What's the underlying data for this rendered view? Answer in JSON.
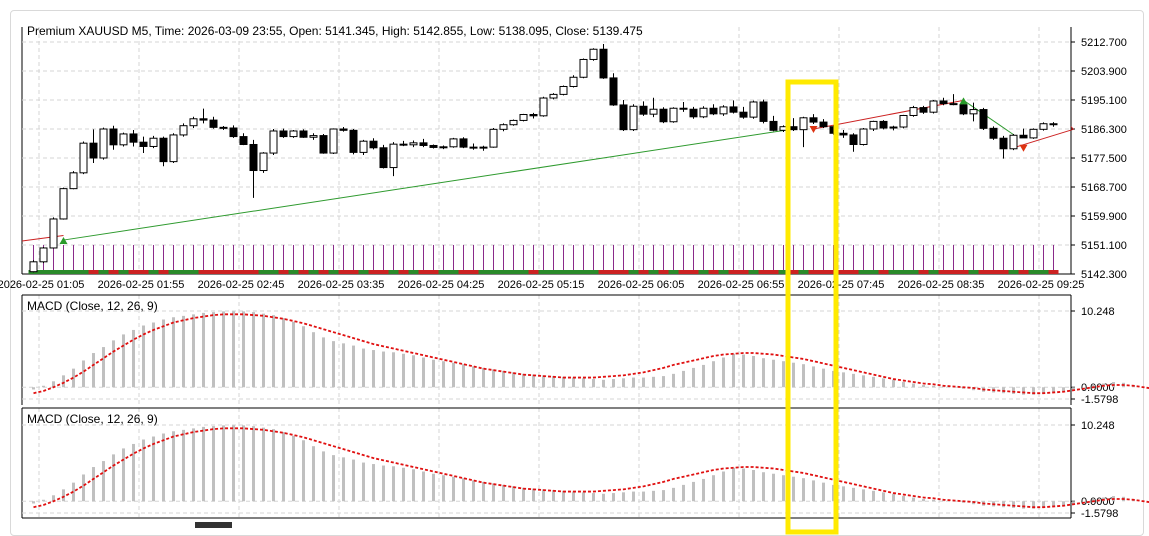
{
  "header": "Premium XAUUSD M5, Time: 2026-03-09 23:55, Open: 5141.345, High: 5142.855, Low: 5138.095, Close: 5139.475",
  "colors": {
    "bull": "#ffffff",
    "bear": "#000000",
    "grid": "#d6d6d6",
    "green_line": "#2e9a2e",
    "red_line": "#cc2222",
    "macd_hist": "#c0c0c0",
    "macd_signal": "#e01010",
    "volume": "#8a2a8a",
    "highlight": "#ffea00"
  },
  "chart_data": [
    {
      "type": "candlestick",
      "symbol": "Premium XAUUSD",
      "timeframe": "M5",
      "y_ticks": [
        "5212.700",
        "5203.900",
        "5195.100",
        "5186.300",
        "5177.500",
        "5168.700",
        "5159.900",
        "5151.100",
        "5142.300"
      ],
      "ylim": [
        5142.3,
        5212.7
      ],
      "x_ticks": [
        "2026-02-25 01:05",
        "2026-02-25 01:55",
        "2026-02-25 02:45",
        "2026-02-25 03:35",
        "2026-02-25 04:25",
        "2026-02-25 05:15",
        "2026-02-25 06:05",
        "2026-02-25 06:55",
        "2026-02-25 07:45",
        "2026-02-25 08:35",
        "2026-02-25 09:25"
      ],
      "candles": [
        [
          5143.0,
          5146.5,
          5142.8,
          5146.0
        ],
        [
          5146.0,
          5150.5,
          5145.6,
          5150.2
        ],
        [
          5150.2,
          5159.5,
          5150.0,
          5159.0
        ],
        [
          5159.0,
          5168.5,
          5158.8,
          5168.2
        ],
        [
          5168.2,
          5173.5,
          5168.0,
          5173.0
        ],
        [
          5173.0,
          5182.5,
          5172.6,
          5182.0
        ],
        [
          5182.0,
          5186.2,
          5176.0,
          5177.5
        ],
        [
          5177.5,
          5186.7,
          5177.0,
          5186.3
        ],
        [
          5186.3,
          5187.3,
          5180.0,
          5181.5
        ],
        [
          5181.5,
          5185.2,
          5181.0,
          5184.8
        ],
        [
          5184.8,
          5186.0,
          5181.0,
          5182.3
        ],
        [
          5182.3,
          5184.0,
          5179.0,
          5181.0
        ],
        [
          5181.0,
          5184.2,
          5180.5,
          5183.5
        ],
        [
          5183.5,
          5184.0,
          5175.0,
          5176.4
        ],
        [
          5176.4,
          5185.0,
          5176.0,
          5184.5
        ],
        [
          5184.5,
          5188.0,
          5184.0,
          5187.3
        ],
        [
          5187.3,
          5190.0,
          5186.6,
          5189.4
        ],
        [
          5189.4,
          5192.5,
          5188.0,
          5189.0
        ],
        [
          5189.0,
          5190.0,
          5186.4,
          5186.8
        ],
        [
          5186.8,
          5187.2,
          5186.0,
          5186.6
        ],
        [
          5186.6,
          5187.4,
          5183.6,
          5184.0
        ],
        [
          5184.0,
          5185.0,
          5181.4,
          5181.6
        ],
        [
          5181.6,
          5183.0,
          5165.4,
          5173.7
        ],
        [
          5173.7,
          5179.3,
          5173.0,
          5179.0
        ],
        [
          5179.0,
          5186.3,
          5178.4,
          5185.7
        ],
        [
          5185.7,
          5186.4,
          5183.6,
          5184.0
        ],
        [
          5184.0,
          5186.0,
          5183.6,
          5185.7
        ],
        [
          5185.7,
          5186.2,
          5183.6,
          5183.8
        ],
        [
          5183.8,
          5185.0,
          5183.0,
          5184.3
        ],
        [
          5184.3,
          5184.8,
          5178.8,
          5179.0
        ],
        [
          5179.0,
          5186.5,
          5178.7,
          5186.3
        ],
        [
          5186.3,
          5186.9,
          5185.5,
          5185.9
        ],
        [
          5185.9,
          5186.3,
          5178.6,
          5179.2
        ],
        [
          5179.2,
          5183.0,
          5178.4,
          5182.6
        ],
        [
          5182.6,
          5183.5,
          5180.1,
          5180.6
        ],
        [
          5180.6,
          5181.5,
          5174.3,
          5174.6
        ],
        [
          5174.6,
          5182.3,
          5172.0,
          5181.7
        ],
        [
          5181.7,
          5182.7,
          5181.1,
          5181.5
        ],
        [
          5181.5,
          5182.8,
          5180.8,
          5182.1
        ],
        [
          5182.1,
          5183.3,
          5180.8,
          5181.3
        ],
        [
          5181.3,
          5181.6,
          5180.4,
          5180.7
        ],
        [
          5180.7,
          5181.3,
          5180.2,
          5180.9
        ],
        [
          5180.9,
          5183.6,
          5180.6,
          5183.3
        ],
        [
          5183.3,
          5183.8,
          5180.5,
          5180.8
        ],
        [
          5180.8,
          5181.9,
          5180.0,
          5180.5
        ],
        [
          5180.5,
          5181.2,
          5179.7,
          5180.8
        ],
        [
          5180.8,
          5186.6,
          5180.6,
          5186.2
        ],
        [
          5186.2,
          5188.0,
          5185.6,
          5187.6
        ],
        [
          5187.6,
          5189.2,
          5187.3,
          5188.9
        ],
        [
          5188.9,
          5190.9,
          5188.6,
          5190.7
        ],
        [
          5190.7,
          5191.2,
          5189.5,
          5190.3
        ],
        [
          5190.3,
          5196.1,
          5190.0,
          5195.7
        ],
        [
          5195.7,
          5197.2,
          5195.3,
          5196.8
        ],
        [
          5196.8,
          5199.5,
          5196.5,
          5199.2
        ],
        [
          5199.2,
          5202.6,
          5198.9,
          5202.0
        ],
        [
          5202.0,
          5207.7,
          5201.7,
          5207.4
        ],
        [
          5207.4,
          5210.8,
          5207.0,
          5210.5
        ],
        [
          5210.5,
          5212.1,
          5201.5,
          5201.8
        ],
        [
          5201.8,
          5203.2,
          5193.3,
          5193.6
        ],
        [
          5193.6,
          5195.1,
          5185.7,
          5186.1
        ],
        [
          5186.1,
          5193.8,
          5185.7,
          5193.2
        ],
        [
          5193.2,
          5194.7,
          5190.3,
          5190.8
        ],
        [
          5190.8,
          5195.8,
          5189.9,
          5192.3
        ],
        [
          5192.3,
          5192.9,
          5188.1,
          5188.5
        ],
        [
          5188.5,
          5192.9,
          5188.2,
          5192.6
        ],
        [
          5192.6,
          5194.5,
          5191.5,
          5192.3
        ],
        [
          5192.3,
          5193.0,
          5189.4,
          5190.0
        ],
        [
          5190.0,
          5193.2,
          5189.6,
          5192.6
        ],
        [
          5192.6,
          5193.8,
          5190.5,
          5190.9
        ],
        [
          5190.9,
          5193.5,
          5190.3,
          5193.0
        ],
        [
          5193.0,
          5195.0,
          5191.0,
          5191.4
        ],
        [
          5191.4,
          5193.0,
          5189.4,
          5189.9
        ],
        [
          5189.9,
          5194.9,
          5189.4,
          5194.5
        ],
        [
          5194.5,
          5195.2,
          5188.0,
          5188.6
        ],
        [
          5188.6,
          5190.3,
          5185.6,
          5185.9
        ],
        [
          5185.9,
          5187.4,
          5185.4,
          5187.0
        ],
        [
          5187.0,
          5189.6,
          5185.7,
          5186.1
        ],
        [
          5186.1,
          5190.0,
          5180.8,
          5189.7
        ],
        [
          5189.7,
          5190.8,
          5187.8,
          5188.4
        ],
        [
          5188.4,
          5189.3,
          5186.6,
          5187.0
        ],
        [
          5187.0,
          5187.4,
          5184.6,
          5185.0
        ],
        [
          5185.0,
          5186.0,
          5183.6,
          5184.5
        ],
        [
          5184.5,
          5185.0,
          5179.4,
          5181.6
        ],
        [
          5181.6,
          5186.6,
          5181.3,
          5186.3
        ],
        [
          5186.3,
          5188.8,
          5185.7,
          5188.6
        ],
        [
          5188.6,
          5189.0,
          5186.2,
          5186.6
        ],
        [
          5186.6,
          5187.3,
          5185.9,
          5186.9
        ],
        [
          5186.9,
          5190.6,
          5186.5,
          5190.4
        ],
        [
          5190.4,
          5193.3,
          5190.0,
          5192.8
        ],
        [
          5192.8,
          5193.3,
          5190.9,
          5191.4
        ],
        [
          5191.4,
          5195.1,
          5191.0,
          5194.8
        ],
        [
          5194.8,
          5195.8,
          5193.5,
          5194.0
        ],
        [
          5194.0,
          5196.9,
          5193.5,
          5193.7
        ],
        [
          5193.7,
          5194.2,
          5190.5,
          5190.9
        ],
        [
          5190.9,
          5194.3,
          5188.6,
          5192.2
        ],
        [
          5192.2,
          5192.7,
          5186.0,
          5186.5
        ],
        [
          5186.5,
          5187.1,
          5183.0,
          5183.5
        ],
        [
          5183.5,
          5184.2,
          5177.3,
          5180.3
        ],
        [
          5180.3,
          5184.8,
          5179.9,
          5184.4
        ],
        [
          5184.4,
          5186.4,
          5183.8,
          5183.6
        ],
        [
          5183.6,
          5186.5,
          5183.3,
          5186.2
        ],
        [
          5186.2,
          5188.3,
          5185.8,
          5187.9
        ],
        [
          5187.9,
          5188.4,
          5187.0,
          5187.6
        ]
      ],
      "lines": [
        {
          "color": "green",
          "from": [
            3,
            5152.6
          ],
          "to": [
            76,
            5186.3
          ]
        },
        {
          "color": "red",
          "from": [
            -4,
            5152.3
          ],
          "to": [
            3,
            5154.0
          ]
        },
        {
          "color": "red",
          "from": [
            78,
            5186.3
          ],
          "to": [
            93,
            5195.0
          ]
        },
        {
          "color": "green",
          "from": [
            93,
            5195.0
          ],
          "to": [
            98,
            5184.6
          ]
        },
        {
          "color": "red",
          "from": [
            98,
            5180.6
          ],
          "to": [
            104,
            5186.2
          ]
        }
      ],
      "arrows": [
        {
          "index": 3,
          "type": "up",
          "color": "green",
          "value": 5152.6
        },
        {
          "index": 78,
          "type": "down",
          "color": "red",
          "value": 5186.3
        },
        {
          "index": 93,
          "type": "up",
          "color": "green",
          "value": 5195.0
        },
        {
          "index": 99,
          "type": "down",
          "color": "red",
          "value": 5180.6
        }
      ]
    },
    {
      "type": "macd",
      "label": "MACD (Close, 12, 26, 9)",
      "y_ticks": [
        "10.248",
        "0.0000",
        "-1.5798"
      ],
      "ylim": [
        -1.5798,
        10.248
      ],
      "histogram": [
        -0.3,
        0.2,
        0.8,
        1.6,
        2.5,
        3.6,
        4.6,
        5.4,
        6.3,
        7.1,
        7.7,
        8.3,
        8.7,
        9.1,
        9.4,
        9.6,
        9.8,
        10.0,
        10.1,
        10.2,
        10.2,
        10.2,
        10.1,
        9.9,
        9.7,
        9.3,
        8.8,
        8.2,
        7.4,
        6.7,
        6.2,
        5.9,
        5.6,
        5.2,
        5.0,
        4.8,
        4.7,
        4.5,
        4.3,
        4.0,
        3.7,
        3.5,
        3.3,
        3.1,
        2.8,
        2.6,
        2.4,
        2.2,
        2.0,
        1.8,
        1.7,
        1.6,
        1.5,
        1.4,
        1.3,
        1.2,
        1.1,
        1.0,
        1.1,
        1.2,
        1.3,
        1.3,
        1.4,
        1.5,
        1.8,
        2.2,
        2.6,
        3.0,
        3.5,
        4.0,
        4.5,
        4.4,
        4.2,
        3.9,
        3.7,
        3.5,
        3.3,
        3.1,
        2.8,
        2.5,
        2.2,
        2.0,
        1.8,
        1.6,
        1.4,
        1.2,
        1.0,
        0.7,
        0.5,
        0.3,
        0.2,
        0.1,
        0.0,
        -0.2,
        -0.4,
        -0.6,
        -0.7,
        -0.8,
        -0.9,
        -1.0,
        -1.0,
        -0.9,
        -0.7,
        -0.5,
        -0.3,
        0.0,
        0.3,
        0.5,
        0.7,
        0.6,
        0.3,
        0.0,
        -0.2,
        -0.5,
        -0.7
      ],
      "signal": [
        -0.8,
        -0.5,
        0.0,
        0.6,
        1.3,
        2.1,
        3.0,
        3.9,
        4.8,
        5.6,
        6.4,
        7.1,
        7.7,
        8.2,
        8.7,
        9.0,
        9.3,
        9.5,
        9.7,
        9.8,
        9.8,
        9.8,
        9.7,
        9.6,
        9.4,
        9.2,
        8.9,
        8.6,
        8.2,
        7.8,
        7.4,
        7.0,
        6.6,
        6.2,
        5.8,
        5.5,
        5.2,
        4.9,
        4.6,
        4.3,
        4.0,
        3.7,
        3.4,
        3.1,
        2.8,
        2.5,
        2.3,
        2.1,
        1.9,
        1.7,
        1.6,
        1.5,
        1.4,
        1.3,
        1.3,
        1.3,
        1.3,
        1.4,
        1.5,
        1.6,
        1.8,
        2.0,
        2.3,
        2.6,
        3.0,
        3.3,
        3.6,
        3.9,
        4.2,
        4.4,
        4.5,
        4.6,
        4.6,
        4.5,
        4.4,
        4.2,
        4.0,
        3.8,
        3.5,
        3.2,
        2.9,
        2.6,
        2.3,
        2.0,
        1.7,
        1.4,
        1.1,
        0.9,
        0.7,
        0.5,
        0.4,
        0.2,
        0.1,
        0.0,
        -0.1,
        -0.3,
        -0.4,
        -0.5,
        -0.6,
        -0.7,
        -0.8,
        -0.8,
        -0.7,
        -0.6,
        -0.4,
        -0.2,
        0.0,
        0.2,
        0.3,
        0.3,
        0.2,
        0.0,
        -0.2,
        -0.4,
        -0.6
      ]
    },
    {
      "type": "macd",
      "label": "MACD (Close, 12, 26, 9)",
      "y_ticks": [
        "10.248",
        "0.0000",
        "-1.5798"
      ],
      "ylim": [
        -1.5798,
        10.248
      ]
    }
  ]
}
